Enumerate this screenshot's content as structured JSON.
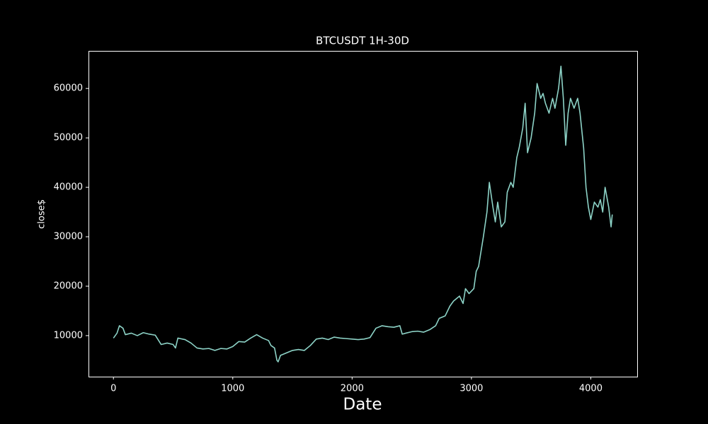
{
  "chart_data": {
    "type": "line",
    "title": "BTCUSDT 1H-30D",
    "xlabel": "Date",
    "ylabel": "close$",
    "xlim": [
      -209,
      4389
    ],
    "ylim": [
      1700,
      67600
    ],
    "xticks": [
      0,
      1000,
      2000,
      3000,
      4000
    ],
    "yticks": [
      10000,
      20000,
      30000,
      40000,
      50000,
      60000
    ],
    "grid": false,
    "series": [
      {
        "color": "#8dd3c7",
        "x": [
          0,
          30,
          50,
          80,
          100,
          150,
          200,
          250,
          300,
          350,
          400,
          450,
          500,
          520,
          540,
          600,
          650,
          700,
          750,
          800,
          850,
          900,
          950,
          1000,
          1050,
          1100,
          1150,
          1200,
          1250,
          1300,
          1320,
          1350,
          1370,
          1380,
          1400,
          1450,
          1500,
          1550,
          1600,
          1650,
          1700,
          1750,
          1800,
          1850,
          1900,
          1950,
          2000,
          2050,
          2100,
          2150,
          2200,
          2250,
          2300,
          2350,
          2400,
          2420,
          2450,
          2500,
          2550,
          2600,
          2650,
          2700,
          2730,
          2780,
          2820,
          2850,
          2900,
          2930,
          2950,
          2980,
          3020,
          3040,
          3060,
          3100,
          3130,
          3150,
          3180,
          3200,
          3220,
          3250,
          3280,
          3300,
          3330,
          3350,
          3380,
          3400,
          3430,
          3450,
          3470,
          3500,
          3530,
          3550,
          3580,
          3600,
          3620,
          3650,
          3680,
          3700,
          3730,
          3750,
          3770,
          3790,
          3810,
          3830,
          3860,
          3890,
          3910,
          3940,
          3960,
          3980,
          4000,
          4030,
          4060,
          4080,
          4100,
          4120,
          4150,
          4170,
          4180
        ],
        "values": [
          9500,
          10500,
          12000,
          11500,
          10200,
          10500,
          10000,
          10600,
          10300,
          10100,
          8200,
          8500,
          8200,
          7500,
          9500,
          9200,
          8500,
          7500,
          7300,
          7400,
          7000,
          7400,
          7300,
          7800,
          8800,
          8700,
          9500,
          10200,
          9500,
          9000,
          8000,
          7500,
          5000,
          4700,
          6000,
          6500,
          7000,
          7200,
          7000,
          8000,
          9300,
          9500,
          9200,
          9700,
          9500,
          9400,
          9300,
          9200,
          9300,
          9600,
          11500,
          12000,
          11800,
          11700,
          12000,
          10300,
          10500,
          10800,
          10900,
          10700,
          11200,
          12000,
          13500,
          14000,
          16000,
          17000,
          18000,
          16500,
          19500,
          18500,
          19500,
          23000,
          24000,
          30000,
          35000,
          41000,
          36000,
          33000,
          37000,
          32000,
          33000,
          39000,
          41000,
          40000,
          46000,
          48000,
          52000,
          57000,
          47000,
          50000,
          55000,
          61000,
          58000,
          59000,
          57000,
          55000,
          58000,
          56000,
          60000,
          64500,
          58000,
          48500,
          55000,
          58000,
          56000,
          58000,
          55000,
          48000,
          40000,
          36000,
          33500,
          37000,
          36000,
          37500,
          35000,
          40000,
          36000,
          32000,
          34500
        ]
      }
    ]
  }
}
